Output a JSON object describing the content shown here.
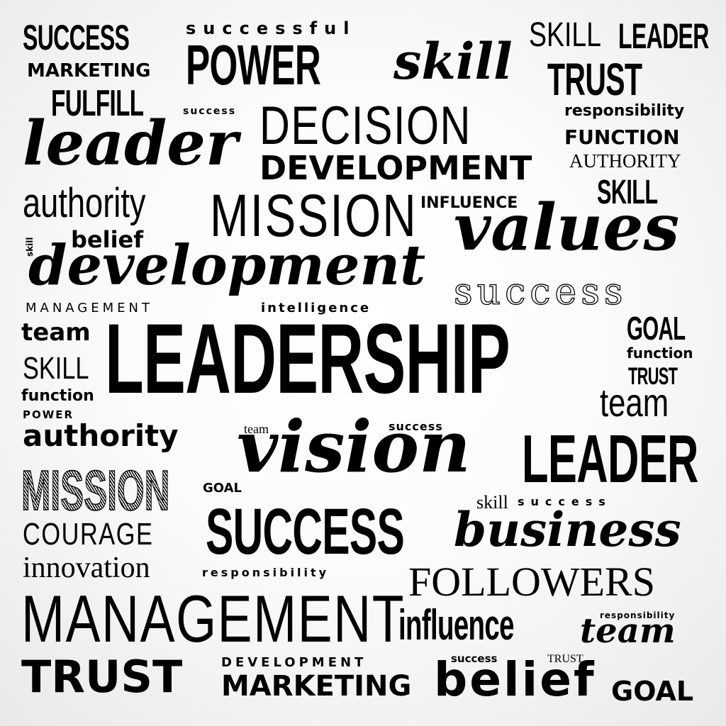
{
  "words": [
    {
      "text": "SUCCESS",
      "style": "cond",
      "size": 50
    },
    {
      "text": "successful",
      "style": "spaced",
      "size": 24
    },
    {
      "text": "POWER",
      "style": "cond",
      "size": 80
    },
    {
      "text": "skill",
      "style": "script",
      "size": 70
    },
    {
      "text": "SKILL",
      "style": "thin",
      "size": 48
    },
    {
      "text": "LEADER",
      "style": "cond",
      "size": 50
    },
    {
      "text": "MARKETING",
      "style": "bold",
      "size": 26
    },
    {
      "text": "TRUST",
      "style": "cond",
      "size": 64
    },
    {
      "text": "FULFILL",
      "style": "cond",
      "size": 52
    },
    {
      "text": "success",
      "style": "spaced",
      "size": 14
    },
    {
      "text": "DECISION",
      "style": "thin",
      "size": 76
    },
    {
      "text": "responsibility",
      "style": "bold",
      "size": 22
    },
    {
      "text": "leader",
      "style": "script",
      "size": 86
    },
    {
      "text": "FUNCTION",
      "style": "bold",
      "size": 28
    },
    {
      "text": "DEVELOPMENT",
      "style": "bold",
      "size": 46
    },
    {
      "text": "AUTHORITY",
      "style": "serif",
      "size": 27
    },
    {
      "text": "authority",
      "style": "thin",
      "size": 58
    },
    {
      "text": "MISSION",
      "style": "thin",
      "size": 84
    },
    {
      "text": "INFLUENCE",
      "style": "bold",
      "size": 22
    },
    {
      "text": "SKILL",
      "style": "cond",
      "size": 48
    },
    {
      "text": "skill",
      "style": "bold",
      "size": 12
    },
    {
      "text": "belief",
      "style": "bold",
      "size": 32
    },
    {
      "text": "values",
      "style": "script",
      "size": 90
    },
    {
      "text": "development",
      "style": "script",
      "size": 78
    },
    {
      "text": "success",
      "style": "outline",
      "size": 52
    },
    {
      "text": "MANAGEMENT",
      "style": "spaced",
      "size": 18
    },
    {
      "text": "intelligence",
      "style": "spaced",
      "size": 18
    },
    {
      "text": "team",
      "style": "bold",
      "size": 34
    },
    {
      "text": "LEADERSHIP",
      "style": "cond",
      "size": 140
    },
    {
      "text": "GOAL",
      "style": "cond",
      "size": 46
    },
    {
      "text": "SKILL",
      "style": "thin",
      "size": 44
    },
    {
      "text": "function",
      "style": "bold",
      "size": 20
    },
    {
      "text": "function",
      "style": "bold",
      "size": 22
    },
    {
      "text": "TRUST",
      "style": "cond",
      "size": 34
    },
    {
      "text": "team",
      "style": "thin",
      "size": 56
    },
    {
      "text": "POWER",
      "style": "bold",
      "size": 15
    },
    {
      "text": "authority",
      "style": "bold",
      "size": 42
    },
    {
      "text": "team",
      "style": "serif",
      "size": 18
    },
    {
      "text": "success",
      "style": "spaced",
      "size": 16
    },
    {
      "text": "vision",
      "style": "script",
      "size": 100
    },
    {
      "text": "LEADER",
      "style": "cond",
      "size": 96
    },
    {
      "text": "MISSION",
      "style": "hatch",
      "size": 80
    },
    {
      "text": "GOAL",
      "style": "bold",
      "size": 18
    },
    {
      "text": "skill",
      "style": "serif",
      "size": 26
    },
    {
      "text": "success",
      "style": "spaced",
      "size": 16
    },
    {
      "text": "COURAGE",
      "style": "thin",
      "size": 44
    },
    {
      "text": "SUCCESS",
      "style": "cond",
      "size": 92
    },
    {
      "text": "business",
      "style": "script",
      "size": 66
    },
    {
      "text": "innovation",
      "style": "serif",
      "size": 42
    },
    {
      "text": "responsibility",
      "style": "spaced",
      "size": 16
    },
    {
      "text": "FOLLOWERS",
      "style": "serif",
      "size": 58
    },
    {
      "text": "MANAGEMENT",
      "style": "thin",
      "size": 94
    },
    {
      "text": "responsibility",
      "style": "spaced",
      "size": 12
    },
    {
      "text": "influence",
      "style": "cond",
      "size": 60
    },
    {
      "text": "team",
      "style": "script",
      "size": 48
    },
    {
      "text": "TRUST",
      "style": "bold",
      "size": 62
    },
    {
      "text": "DEVELOPMENT",
      "style": "spaced",
      "size": 18
    },
    {
      "text": "success",
      "style": "bold",
      "size": 15
    },
    {
      "text": "TRUST",
      "style": "serif",
      "size": 16
    },
    {
      "text": "MARKETING",
      "style": "bold",
      "size": 40
    },
    {
      "text": "belief",
      "style": "bold",
      "size": 66
    },
    {
      "text": "GOAL",
      "style": "bold",
      "size": 38
    }
  ]
}
